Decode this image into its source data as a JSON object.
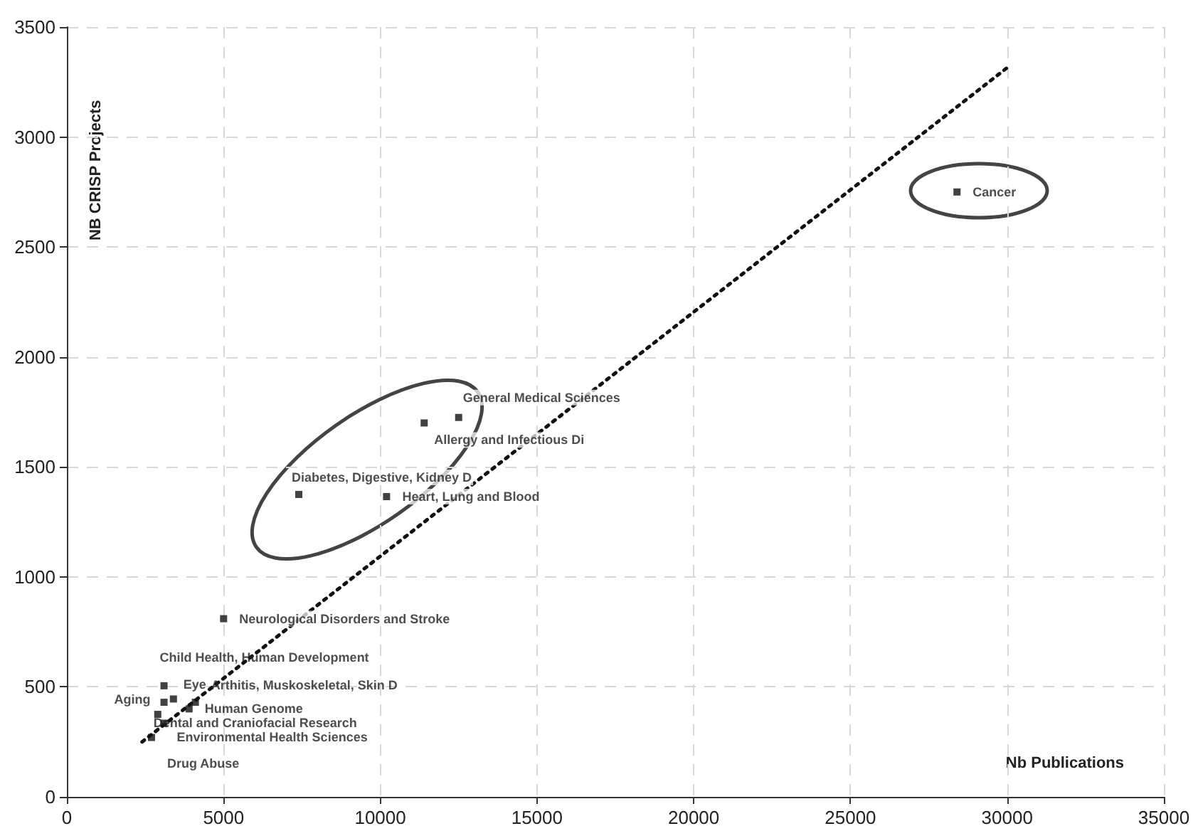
{
  "chart_data": {
    "type": "scatter",
    "xlabel": "Nb Publications",
    "ylabel": "NB CRISP Projects",
    "xlim": [
      0,
      35000
    ],
    "xticks": [
      0,
      5000,
      10000,
      15000,
      20000,
      25000,
      30000,
      35000
    ],
    "ylim": [
      0,
      3500
    ],
    "yticks": [
      0,
      500,
      1000,
      1500,
      2000,
      2500,
      3000,
      3500
    ],
    "grid": true,
    "marker": "square",
    "series": [
      {
        "color": "#111111",
        "x": [
          28400,
          12500,
          11400,
          7400,
          10200,
          5000,
          3100,
          3100,
          3400,
          4100,
          3900,
          2900,
          3100,
          2700
        ],
        "values": [
          2750,
          1725,
          1700,
          1375,
          1365,
          810,
          505,
          430,
          445,
          430,
          400,
          375,
          335,
          270
        ]
      },
      {
        "type": "line",
        "color": "#111111",
        "line_style": "dotted",
        "marker": "none",
        "x": [
          2400,
          30000
        ],
        "values": [
          250,
          3315
        ]
      }
    ],
    "annotations": [
      {
        "text": "Cancer",
        "x": 28400,
        "y": 2750
      },
      {
        "text": "General Medical Sciences",
        "x": 12500,
        "y": 1725
      },
      {
        "text": "Allergy and Infectious Di",
        "x": 11400,
        "y": 1700
      },
      {
        "text": "Diabetes, Digestive, Kidney D",
        "x": 7400,
        "y": 1375
      },
      {
        "text": "Heart, Lung and Blood",
        "x": 10200,
        "y": 1365
      },
      {
        "text": "Neurological Disorders and Stroke",
        "x": 5000,
        "y": 810
      },
      {
        "text": "Child Health, Human Development",
        "x": 3100,
        "y": 505
      },
      {
        "text": "Aging",
        "x": 3100,
        "y": 430
      },
      {
        "text": "Eye",
        "x": 3400,
        "y": 445
      },
      {
        "text": "Arthitis, Muskoskeletal, Skin D",
        "x": 4100,
        "y": 430
      },
      {
        "text": "Human Genome",
        "x": 3900,
        "y": 400
      },
      {
        "text": "Dental and Craniofacial Research",
        "x": 2900,
        "y": 375
      },
      {
        "text": "Environmental Health Sciences",
        "x": 3100,
        "y": 335
      },
      {
        "text": "Drug Abuse",
        "x": 2700,
        "y": 270
      }
    ]
  }
}
